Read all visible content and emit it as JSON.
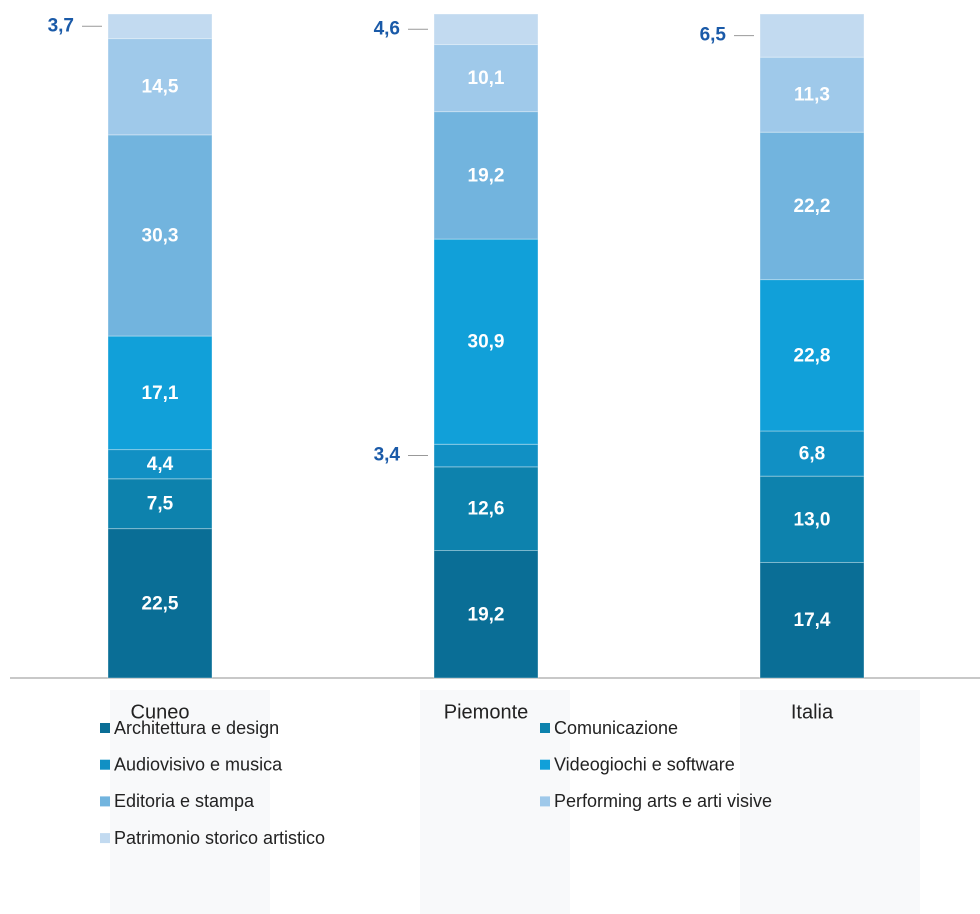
{
  "chart_data": {
    "type": "stacked-bar",
    "categories": [
      "Cuneo",
      "Piemonte",
      "Italia"
    ],
    "series": [
      {
        "name": "Architettura e design",
        "color": "#0a6e96",
        "values": [
          22.5,
          19.2,
          17.4
        ],
        "value_labels": [
          "22,5",
          "19,2",
          "17,4"
        ]
      },
      {
        "name": "Comunicazione",
        "color": "#0d82ad",
        "values": [
          7.5,
          12.6,
          13.0
        ],
        "value_labels": [
          "7,5",
          "12,6",
          "13,0"
        ]
      },
      {
        "name": "Audiovisivo e musica",
        "color": "#1190c4",
        "values": [
          4.4,
          3.4,
          6.8
        ],
        "value_labels": [
          "4,4",
          "3,4",
          "6,8"
        ]
      },
      {
        "name": "Videogiochi e software",
        "color": "#11a0d9",
        "values": [
          17.1,
          30.9,
          22.8
        ],
        "value_labels": [
          "17,1",
          "30,9",
          "22,8"
        ]
      },
      {
        "name": "Editoria e stampa",
        "color": "#72b4de",
        "values": [
          30.3,
          19.2,
          22.2
        ],
        "value_labels": [
          "30,3",
          "19,2",
          "22,2"
        ]
      },
      {
        "name": "Performing arts e arti visive",
        "color": "#9fc9ea",
        "values": [
          14.5,
          10.1,
          11.3
        ],
        "value_labels": [
          "14,5",
          "10,1",
          "11,3"
        ]
      },
      {
        "name": "Patrimonio storico artistico",
        "color": "#c2daf0",
        "values": [
          3.7,
          4.6,
          6.5
        ],
        "value_labels": [
          "3,7",
          "4,6",
          "6,5"
        ]
      }
    ]
  }
}
